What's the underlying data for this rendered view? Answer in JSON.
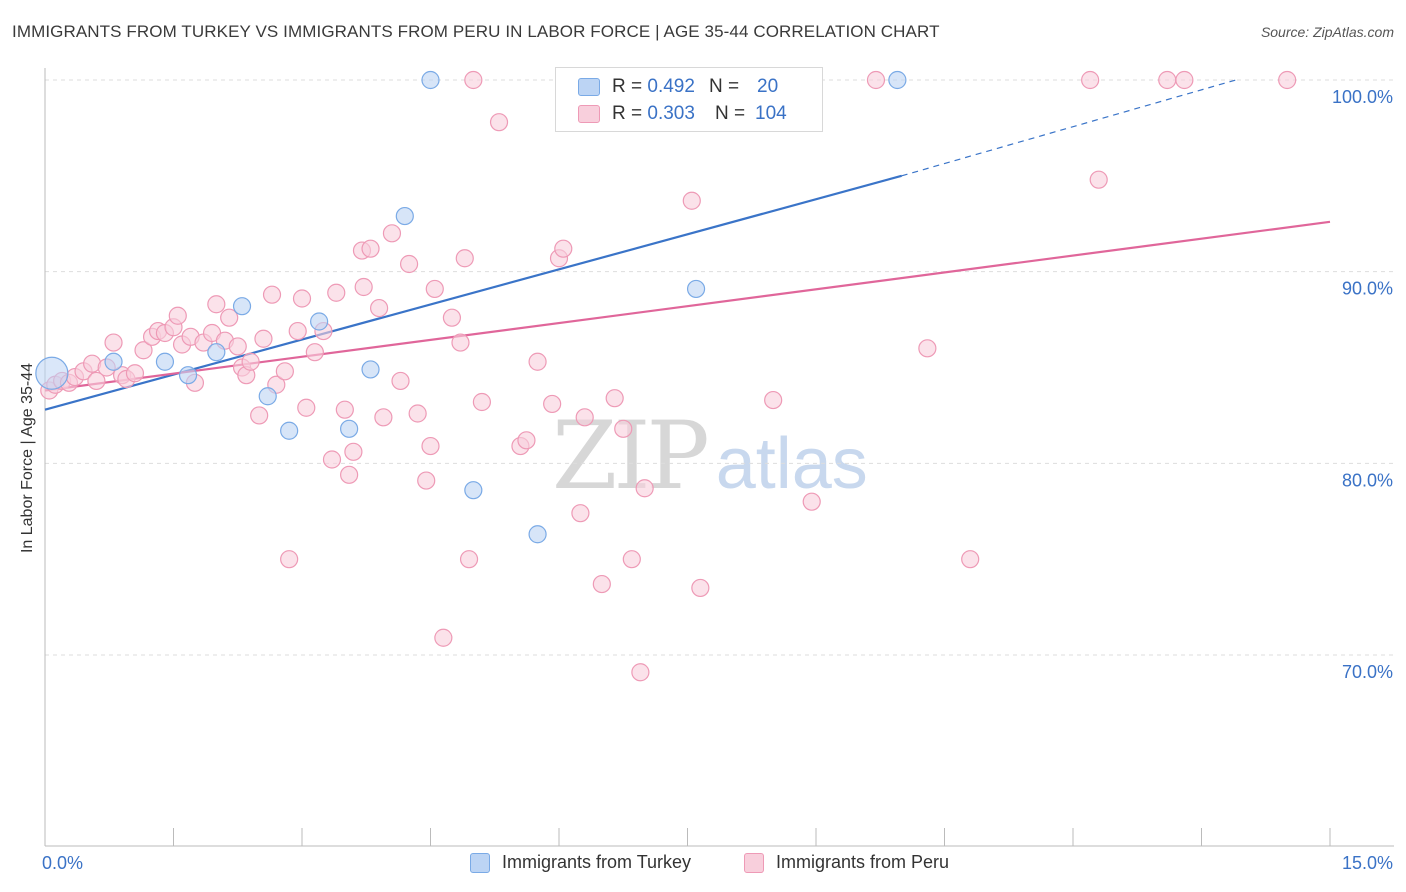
{
  "title": "IMMIGRANTS FROM TURKEY VS IMMIGRANTS FROM PERU IN LABOR FORCE | AGE 35-44 CORRELATION CHART",
  "source": "Source: ZipAtlas.com",
  "watermark": {
    "zip": "ZIP",
    "atlas": "atlas"
  },
  "legend": {
    "rows": [
      {
        "r_label": "R =",
        "r_value": "0.492",
        "n_label": "N =",
        "n_value": "20"
      },
      {
        "r_label": "R =",
        "r_value": "0.303",
        "n_label": "N =",
        "n_value": "104"
      }
    ]
  },
  "bottom_legend": [
    "Immigrants from Turkey",
    "Immigrants from Peru"
  ],
  "colors": {
    "turkey": "#7aaae6",
    "turkey_fill": "#bcd4f4",
    "turkey_line": "#3a74c8",
    "peru": "#ee9ab6",
    "peru_fill": "#f8cfdc",
    "peru_line": "#e0669a",
    "axis_label": "#3a72c6",
    "grid": "#dddddd"
  },
  "chart_data": {
    "type": "scatter",
    "title": "IMMIGRANTS FROM TURKEY VS IMMIGRANTS FROM PERU IN LABOR FORCE | AGE 35-44 CORRELATION CHART",
    "xlabel": "",
    "ylabel": "In Labor Force | Age 35-44",
    "xlim": [
      0,
      15
    ],
    "ylim": [
      60,
      101.5
    ],
    "x_tick_labels": [
      "0.0%",
      "15.0%"
    ],
    "y_ticks": [
      70,
      80,
      90,
      100
    ],
    "y_tick_labels": [
      "70.0%",
      "80.0%",
      "90.0%",
      "100.0%"
    ],
    "grid": true,
    "legend_position": "top-center",
    "series": [
      {
        "name": "Immigrants from Turkey",
        "r": 0.492,
        "n": 20,
        "points": [
          [
            0.08,
            84.7
          ],
          [
            0.8,
            85.3
          ],
          [
            1.4,
            85.3
          ],
          [
            1.67,
            84.6
          ],
          [
            2.0,
            85.8
          ],
          [
            2.3,
            88.2
          ],
          [
            2.6,
            83.5
          ],
          [
            2.85,
            81.7
          ],
          [
            3.2,
            87.4
          ],
          [
            3.55,
            81.8
          ],
          [
            3.8,
            84.9
          ],
          [
            4.2,
            92.9
          ],
          [
            4.5,
            100.0
          ],
          [
            5.0,
            78.6
          ],
          [
            5.75,
            76.3
          ],
          [
            7.6,
            89.1
          ],
          [
            9.95,
            100.0
          ]
        ],
        "trend": {
          "x0": 0,
          "y0": 82.8,
          "x1": 10.0,
          "y1": 95.0,
          "dash_to_x": 13.9,
          "dash_to_y": 100.0
        }
      },
      {
        "name": "Immigrants from Peru",
        "r": 0.303,
        "n": 104,
        "points": [
          [
            0.05,
            83.8
          ],
          [
            0.12,
            84.1
          ],
          [
            0.2,
            84.3
          ],
          [
            0.28,
            84.2
          ],
          [
            0.35,
            84.5
          ],
          [
            0.45,
            84.8
          ],
          [
            0.55,
            85.2
          ],
          [
            0.6,
            84.3
          ],
          [
            0.72,
            85.0
          ],
          [
            0.8,
            86.3
          ],
          [
            0.9,
            84.6
          ],
          [
            0.95,
            84.4
          ],
          [
            1.05,
            84.7
          ],
          [
            1.15,
            85.9
          ],
          [
            1.25,
            86.6
          ],
          [
            1.32,
            86.9
          ],
          [
            1.4,
            86.8
          ],
          [
            1.5,
            87.1
          ],
          [
            1.55,
            87.7
          ],
          [
            1.6,
            86.2
          ],
          [
            1.7,
            86.6
          ],
          [
            1.75,
            84.2
          ],
          [
            1.85,
            86.3
          ],
          [
            1.95,
            86.8
          ],
          [
            2.0,
            88.3
          ],
          [
            2.1,
            86.4
          ],
          [
            2.15,
            87.6
          ],
          [
            2.25,
            86.1
          ],
          [
            2.3,
            85.0
          ],
          [
            2.35,
            84.6
          ],
          [
            2.4,
            85.3
          ],
          [
            2.5,
            82.5
          ],
          [
            2.55,
            86.5
          ],
          [
            2.65,
            88.8
          ],
          [
            2.7,
            84.1
          ],
          [
            2.8,
            84.8
          ],
          [
            2.85,
            75.0
          ],
          [
            2.95,
            86.9
          ],
          [
            3.0,
            88.6
          ],
          [
            3.05,
            82.9
          ],
          [
            3.15,
            85.8
          ],
          [
            3.25,
            86.9
          ],
          [
            3.35,
            80.2
          ],
          [
            3.4,
            88.9
          ],
          [
            3.5,
            82.8
          ],
          [
            3.55,
            79.4
          ],
          [
            3.6,
            80.6
          ],
          [
            3.7,
            91.1
          ],
          [
            3.72,
            89.2
          ],
          [
            3.8,
            91.2
          ],
          [
            3.9,
            88.1
          ],
          [
            3.95,
            82.4
          ],
          [
            4.05,
            92.0
          ],
          [
            4.15,
            84.3
          ],
          [
            4.25,
            90.4
          ],
          [
            4.35,
            82.6
          ],
          [
            4.45,
            79.1
          ],
          [
            4.5,
            80.9
          ],
          [
            4.55,
            89.1
          ],
          [
            4.65,
            70.9
          ],
          [
            4.75,
            87.6
          ],
          [
            4.85,
            86.3
          ],
          [
            4.9,
            90.7
          ],
          [
            4.95,
            75.0
          ],
          [
            5.0,
            100.0
          ],
          [
            5.1,
            83.2
          ],
          [
            5.3,
            97.8
          ],
          [
            5.55,
            80.9
          ],
          [
            5.62,
            81.2
          ],
          [
            5.75,
            85.3
          ],
          [
            5.92,
            83.1
          ],
          [
            6.0,
            90.7
          ],
          [
            6.05,
            91.2
          ],
          [
            6.25,
            77.4
          ],
          [
            6.3,
            82.4
          ],
          [
            6.5,
            73.7
          ],
          [
            6.65,
            83.4
          ],
          [
            6.75,
            81.8
          ],
          [
            6.85,
            75.0
          ],
          [
            6.95,
            69.1
          ],
          [
            7.0,
            78.7
          ],
          [
            7.1,
            100.0
          ],
          [
            7.55,
            93.7
          ],
          [
            7.65,
            73.5
          ],
          [
            7.8,
            100.0
          ],
          [
            8.5,
            83.3
          ],
          [
            8.7,
            99.3
          ],
          [
            8.95,
            78.0
          ],
          [
            9.7,
            100.0
          ],
          [
            10.3,
            86.0
          ],
          [
            10.8,
            75.0
          ],
          [
            12.2,
            100.0
          ],
          [
            12.3,
            94.8
          ],
          [
            13.1,
            100.0
          ],
          [
            13.3,
            100.0
          ],
          [
            14.5,
            100.0
          ]
        ],
        "trend": {
          "x0": 0,
          "y0": 83.8,
          "x1": 15.0,
          "y1": 92.6
        }
      }
    ]
  }
}
